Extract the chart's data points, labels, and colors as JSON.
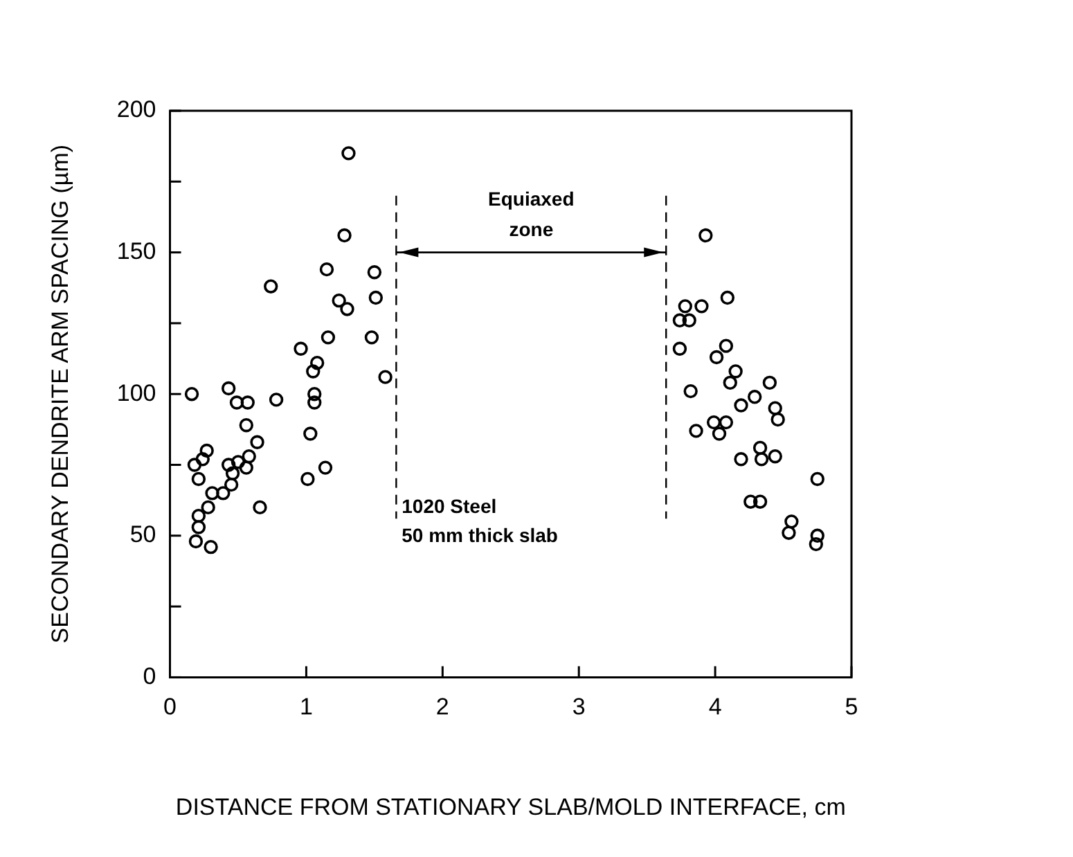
{
  "chart_data": {
    "type": "scatter",
    "xlabel": "DISTANCE FROM STATIONARY SLAB/MOLD INTERFACE, cm",
    "ylabel": "SECONDARY DENDRITE ARM SPACING (µm)",
    "xlim": [
      0,
      5
    ],
    "xticks": [
      0,
      1,
      2,
      3,
      4,
      5
    ],
    "ylim": [
      0,
      200
    ],
    "yticks": [
      0,
      {
        "value": 25,
        "label": null
      },
      50,
      {
        "value": 75,
        "label": null
      },
      100,
      {
        "value": 125,
        "label": null
      },
      150,
      {
        "value": 175,
        "label": null
      },
      200
    ],
    "grid": false,
    "legend": false,
    "marker": "circle",
    "series": [
      {
        "color": "#000000",
        "x": [
          0.16,
          0.43,
          0.49,
          0.57,
          0.78,
          0.74,
          0.56,
          0.64,
          0.27,
          0.24,
          0.18,
          0.21,
          0.43,
          0.5,
          0.58,
          0.56,
          0.46,
          0.45,
          0.31,
          0.39,
          0.66,
          0.28,
          0.21,
          0.21,
          0.19,
          0.3,
          0.96,
          1.16,
          1.08,
          1.05,
          1.06,
          1.06,
          1.03,
          1.01,
          1.14,
          1.15,
          1.24,
          1.3,
          1.28,
          1.31,
          1.5,
          1.51,
          1.48,
          1.58,
          3.93,
          3.78,
          3.9,
          4.09,
          3.74,
          3.81,
          3.74,
          4.08,
          4.01,
          4.15,
          4.11,
          4.4,
          3.82,
          4.29,
          4.19,
          4.44,
          4.46,
          3.86,
          3.99,
          4.08,
          4.03,
          4.33,
          4.34,
          4.44,
          4.19,
          4.75,
          4.26,
          4.33,
          4.56,
          4.54,
          4.75,
          4.74
        ],
        "values": [
          100,
          102,
          97,
          97,
          98,
          138,
          89,
          83,
          80,
          77,
          75,
          70,
          75,
          76,
          78,
          74,
          72,
          68,
          65,
          65,
          60,
          60,
          57,
          53,
          48,
          46,
          116,
          120,
          111,
          108,
          100,
          97,
          86,
          70,
          74,
          144,
          133,
          130,
          156,
          185,
          143,
          134,
          120,
          106,
          156,
          131,
          131,
          134,
          126,
          126,
          116,
          117,
          113,
          108,
          104,
          104,
          101,
          99,
          96,
          95,
          91,
          87,
          90,
          90,
          86,
          81,
          77,
          78,
          77,
          70,
          62,
          62,
          55,
          51,
          50,
          47
        ]
      }
    ],
    "ref_lines": [
      {
        "axis": "x",
        "value": 1.66,
        "line_style": "dashed"
      },
      {
        "axis": "x",
        "value": 3.64,
        "line_style": "dashed"
      }
    ],
    "annotations": [
      "Equiaxed\nzone",
      {
        "text": "1020 Steel\n50 mm thick slab",
        "x": 1.7,
        "y": 58
      }
    ]
  }
}
